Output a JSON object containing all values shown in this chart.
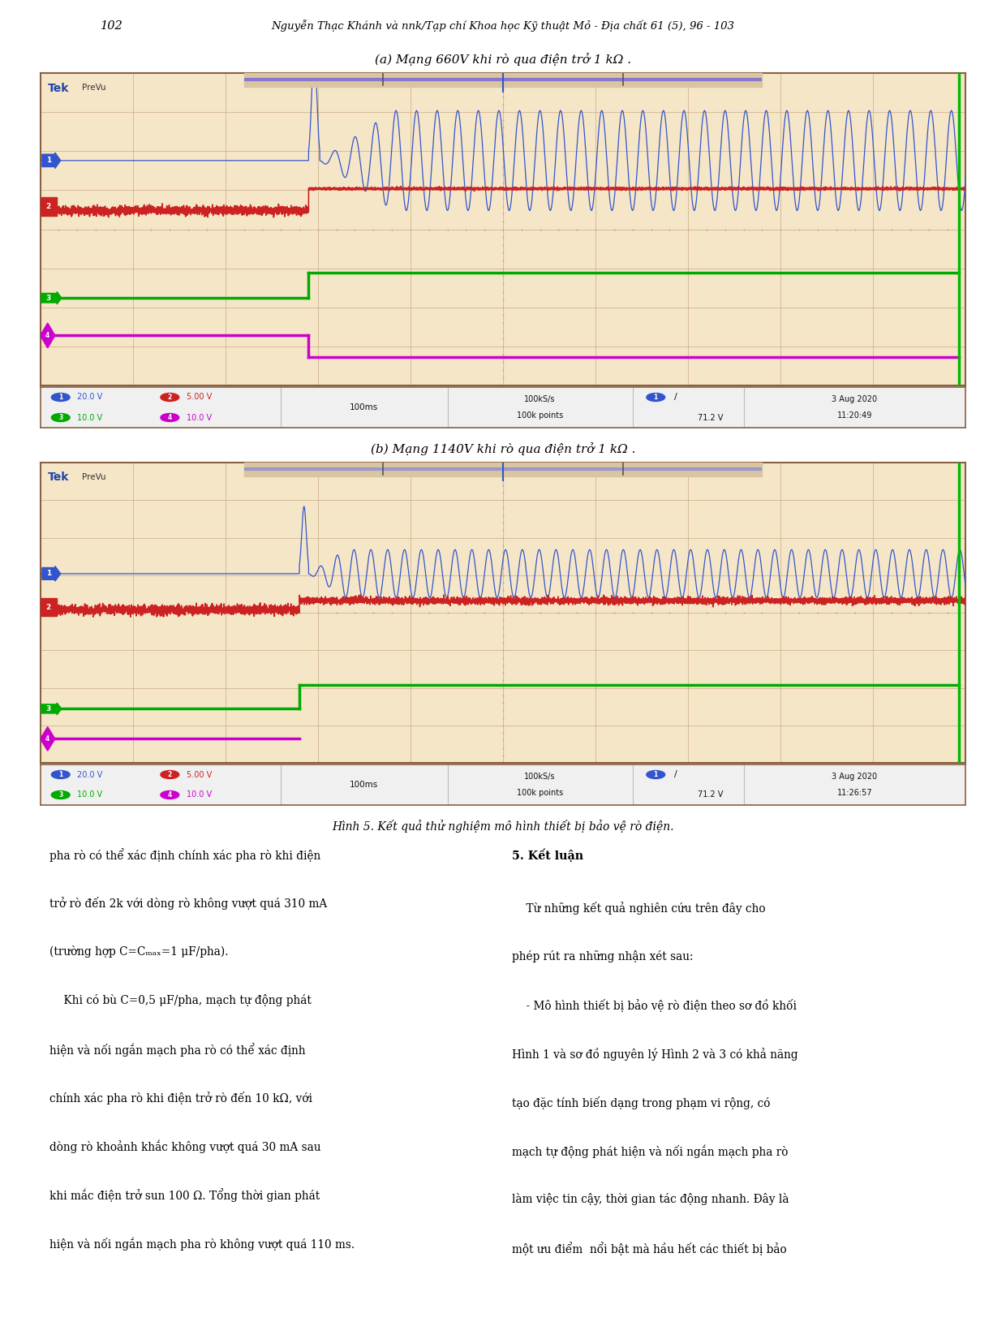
{
  "page_num": "102",
  "header_text": "Nguyễn Thạc Khánh và nnk/Tạp chí Khoa học Kỹ thuật Mỏ - Địa chất 61 (5), 96 - 103",
  "title_a": "(a) Mạng 660V khi rò qua điện trở 1 kΩ .",
  "title_b": "(b) Mạng 1140V khi rò qua điện trở 1 kΩ .",
  "fig_caption": "Hình 5. Kết quả thử nghiệm mô hình thiết bị bảo vệ rò điện.",
  "osc_bg": "#f5e6c8",
  "osc_border": "#8B6040",
  "grid_color": "#c8a882",
  "ch1_color": "#3355CC",
  "ch2_color": "#CC2222",
  "ch3_color": "#00AA00",
  "ch4_color": "#CC00CC",
  "tek_color": "#2244AA",
  "body_text_left": [
    "pha rò có thể xác định chính xác pha rò khi điện",
    "trở rò đến 2k với dòng rò không vượt quá 310 mA",
    "(trường hợp C=Cₘₐₓ=1 μF/pha).",
    "    Khi có bù C=0,5 μF/pha, mạch tự động phát",
    "hiện và nối ngắn mạch pha rò có thể xác định",
    "chính xác pha rò khi điện trở rò đến 10 kΩ, với",
    "dòng rò khoảnh khắc không vượt quá 30 mA sau",
    "khi mắc điện trở sun 100 Ω. Tổng thời gian phát",
    "hiện và nối ngắn mạch pha rò không vượt quá 110 ms."
  ],
  "section_title": "5. Kết luận",
  "section_text": [
    "    Từ những kết quả nghiên cứu trên đây cho",
    "phép rút ra những nhận xét sau:",
    "    - Mô hình thiết bị bảo vệ rò điện theo sơ đồ khối",
    "Hình 1 và sơ đồ nguyên lý Hình 2 và 3 có khả năng",
    "tạo đặc tính biến dạng trong phạm vi rộng, có",
    "mạch tự động phát hiện và nối ngắn mạch pha rò",
    "làm việc tin cậy, thời gian tác động nhanh. Đây là",
    "một ưu điểm  nổi bật mà hầu hết các thiết bị bảo"
  ],
  "status_a": {
    "ch1_label": "20.0 V",
    "ch2_label": "5.00 V",
    "ch3_label": "10.0 V",
    "ch4_label": "10.0 V",
    "time": "100ms",
    "rate": "100kS/s",
    "points": "100k points",
    "voltage": "71.2 V",
    "date": "3 Aug 2020",
    "time2": "11:20:49"
  },
  "status_b": {
    "ch1_label": "20.0 V",
    "ch2_label": "5.00 V",
    "ch3_label": "10.0 V",
    "ch4_label": "10.0 V",
    "time": "100ms",
    "rate": "100kS/s",
    "points": "100k points",
    "voltage": "71.2 V",
    "date": "3 Aug 2020",
    "time2": "11:26:57"
  }
}
